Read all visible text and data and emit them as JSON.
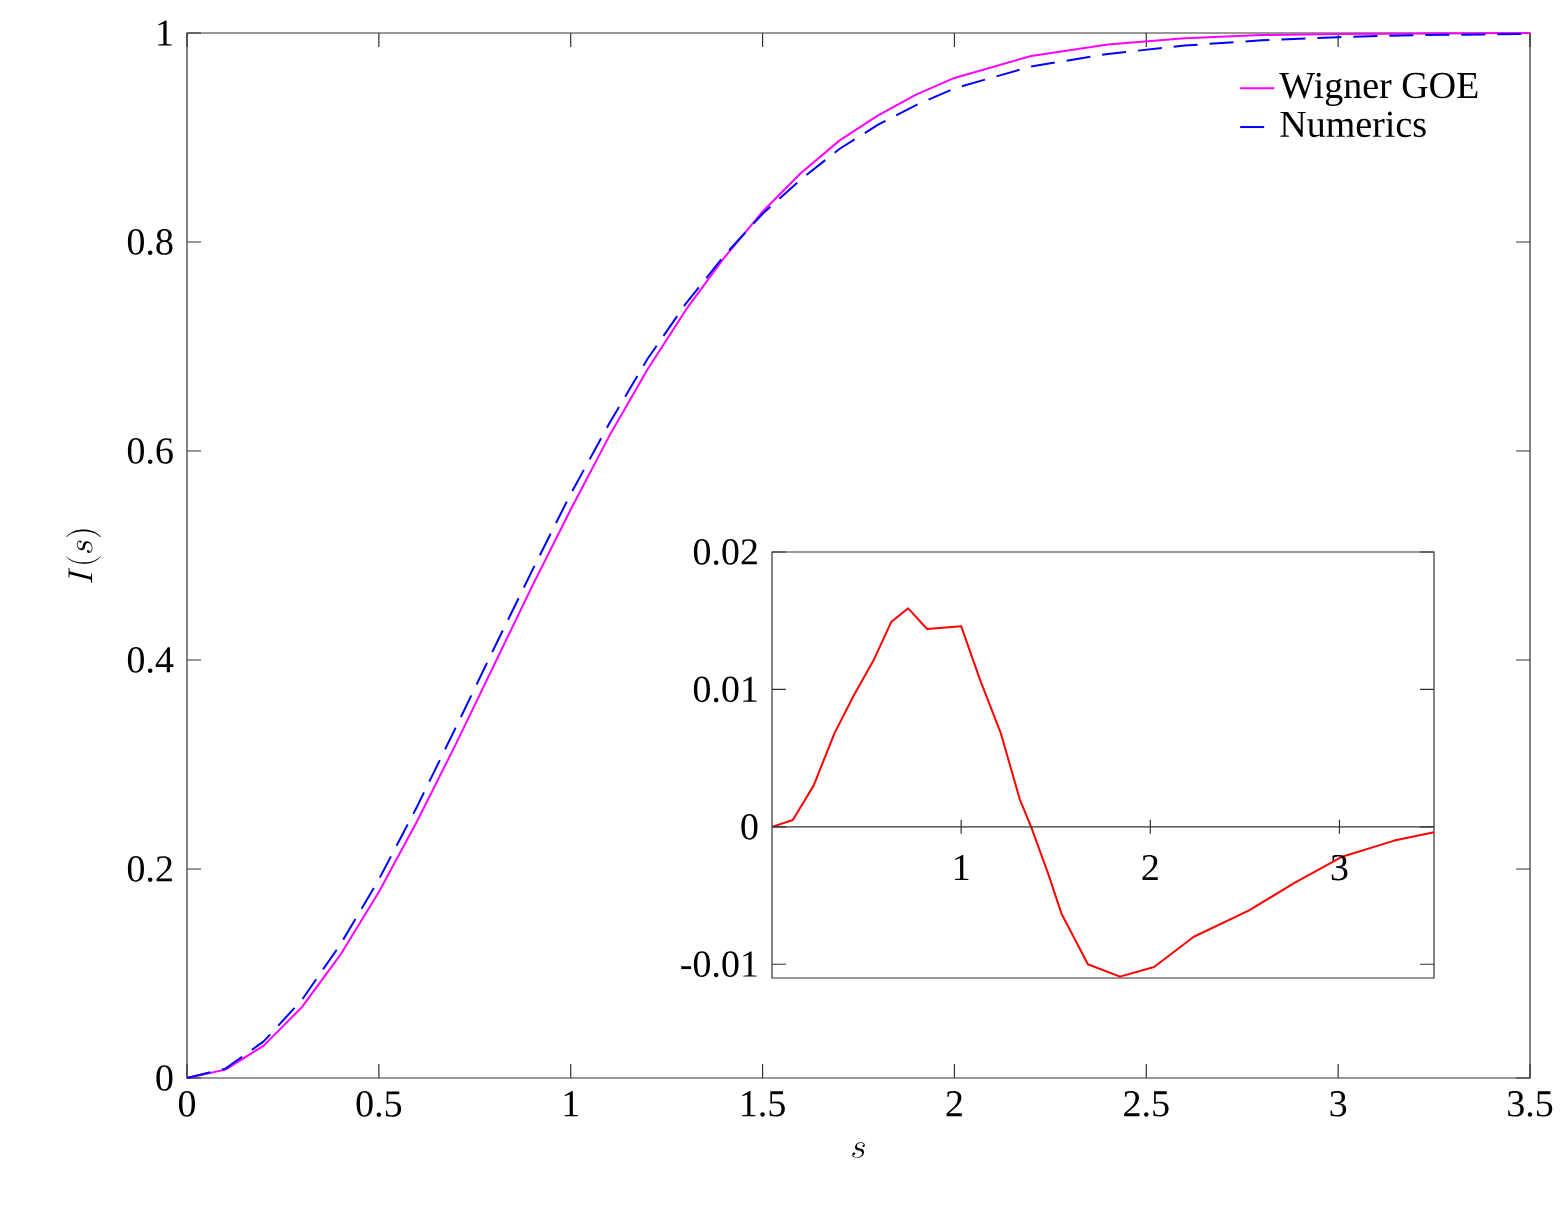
{
  "chart_data": [
    {
      "type": "line",
      "xlabel": "s",
      "ylabel": "I(s)",
      "xlim": [
        0,
        3.5
      ],
      "ylim": [
        0,
        1
      ],
      "xticks": [
        0,
        0.5,
        1,
        1.5,
        2,
        2.5,
        3,
        3.5
      ],
      "yticks": [
        0,
        0.2,
        0.4,
        0.6,
        0.8,
        1
      ],
      "legend": "top right",
      "series": [
        {
          "name": "Wigner GOE",
          "color": "#ff00ff",
          "line_style": "solid",
          "x": [
            0,
            0.1,
            0.2,
            0.3,
            0.4,
            0.5,
            0.6,
            0.7,
            0.8,
            0.9,
            1.0,
            1.1,
            1.2,
            1.3,
            1.4,
            1.5,
            1.6,
            1.7,
            1.8,
            1.9,
            2.0,
            2.2,
            2.4,
            2.6,
            2.8,
            3.0,
            3.5
          ],
          "values": [
            0,
            0.008,
            0.031,
            0.068,
            0.118,
            0.178,
            0.246,
            0.319,
            0.395,
            0.471,
            0.544,
            0.614,
            0.678,
            0.735,
            0.785,
            0.829,
            0.866,
            0.897,
            0.921,
            0.941,
            0.957,
            0.978,
            0.989,
            0.995,
            0.998,
            0.999,
            1.0
          ]
        },
        {
          "name": "Numerics",
          "color": "#0000ff",
          "line_style": "dashed",
          "x": [
            0,
            0.1,
            0.2,
            0.3,
            0.4,
            0.5,
            0.6,
            0.7,
            0.8,
            0.9,
            1.0,
            1.1,
            1.2,
            1.3,
            1.4,
            1.5,
            1.6,
            1.7,
            1.8,
            1.9,
            2.0,
            2.2,
            2.4,
            2.6,
            2.8,
            3.0,
            3.2,
            3.5
          ],
          "values": [
            0,
            0.009,
            0.035,
            0.075,
            0.128,
            0.19,
            0.26,
            0.335,
            0.411,
            0.486,
            0.559,
            0.626,
            0.688,
            0.741,
            0.787,
            0.827,
            0.86,
            0.889,
            0.912,
            0.931,
            0.947,
            0.968,
            0.98,
            0.988,
            0.993,
            0.996,
            0.998,
            0.999
          ]
        }
      ]
    },
    {
      "type": "line",
      "xlim": [
        0,
        3.5
      ],
      "ylim": [
        -0.011,
        0.02
      ],
      "xticks": [
        1,
        2,
        3
      ],
      "yticks": [
        -0.01,
        0,
        0.01,
        0.02
      ],
      "series": [
        {
          "color": "#ff0000",
          "line_style": "solid",
          "x": [
            0,
            0.11,
            0.22,
            0.33,
            0.43,
            0.54,
            0.63,
            0.72,
            0.82,
            1.0,
            1.1,
            1.21,
            1.31,
            1.37,
            1.46,
            1.53,
            1.67,
            1.84,
            2.02,
            2.23,
            2.52,
            2.76,
            3.01,
            3.29,
            3.5
          ],
          "values": [
            0,
            0.0005,
            0.003,
            0.0068,
            0.0095,
            0.0122,
            0.0149,
            0.0159,
            0.0144,
            0.0146,
            0.0107,
            0.0068,
            0.002,
            0,
            -0.0034,
            -0.0063,
            -0.01,
            -0.0109,
            -0.0102,
            -0.008,
            -0.0061,
            -0.0041,
            -0.0022,
            -0.001,
            -0.0004
          ]
        }
      ]
    }
  ]
}
